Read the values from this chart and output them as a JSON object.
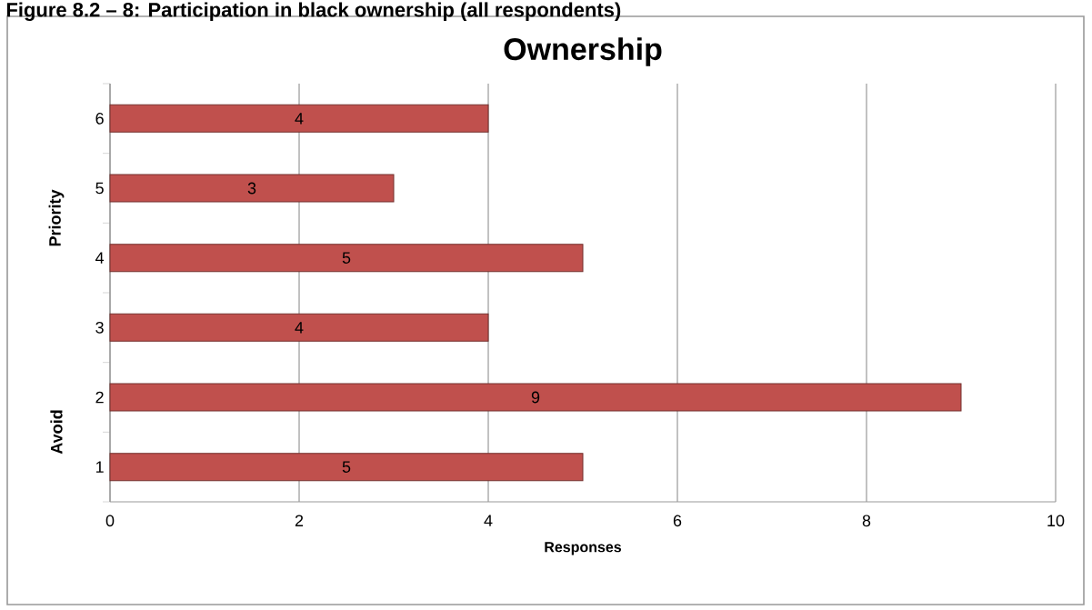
{
  "chart_data": {
    "type": "bar",
    "orientation": "horizontal",
    "title": "Ownership",
    "subtitle": "Figure 8.2 – 8: Participation in black ownership (all respondents)",
    "xlabel": "Responses",
    "annotations": [
      "Priority",
      "Avoid"
    ],
    "categories": [
      "6",
      "5",
      "4",
      "3",
      "2",
      "1"
    ],
    "values": [
      4,
      3,
      5,
      4,
      9,
      5
    ],
    "color": "#c0504d",
    "xlim": [
      0,
      10
    ],
    "xticks": [
      0,
      2,
      4,
      6,
      8,
      10
    ],
    "grid": "x",
    "data_labels": true
  }
}
